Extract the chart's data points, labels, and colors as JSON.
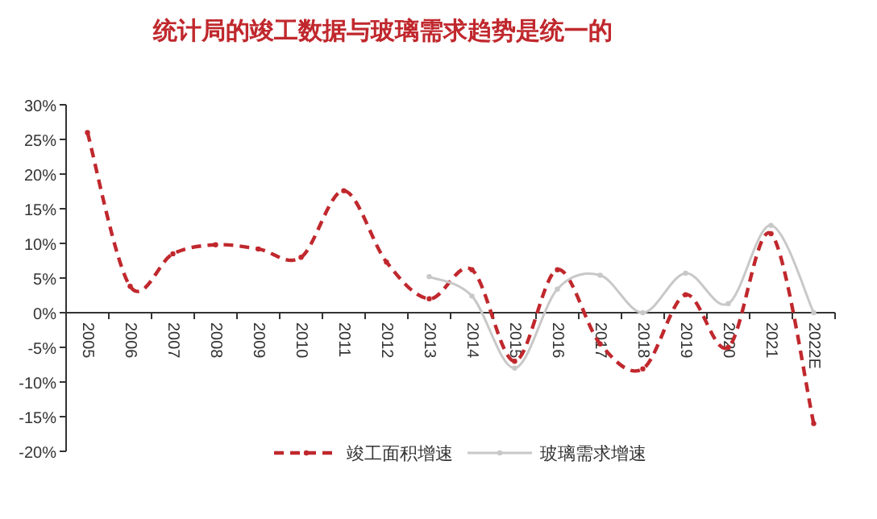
{
  "chart_data": {
    "type": "line",
    "title": "统计局的竣工数据与玻璃需求趋势是统一的",
    "categories": [
      "2005",
      "2006",
      "2007",
      "2008",
      "2009",
      "2010",
      "2011",
      "2012",
      "2013",
      "2014",
      "2015",
      "2016",
      "2017",
      "2018",
      "2019",
      "2020",
      "2021",
      "2022E"
    ],
    "series": [
      {
        "name": "竣工面积增速",
        "color": "#c0282d",
        "line_style": "dashed",
        "values": [
          26,
          3.8,
          8.5,
          9.8,
          9.2,
          8,
          17.6,
          7.3,
          2,
          6.2,
          -7,
          6.2,
          -4.5,
          -8.1,
          2.6,
          -5,
          11.4,
          -16
        ]
      },
      {
        "name": "玻璃需求增速",
        "color": "#c8c8c8",
        "line_style": "solid",
        "values": [
          null,
          null,
          null,
          null,
          null,
          null,
          null,
          null,
          5.2,
          2.4,
          -8,
          3.4,
          5.4,
          0,
          5.7,
          1.3,
          12.6,
          0
        ]
      }
    ],
    "ylim": [
      -20,
      30
    ],
    "yticks": [
      {
        "value": -20,
        "label": "-20%"
      },
      {
        "value": -15,
        "label": "-15%"
      },
      {
        "value": -10,
        "label": "-10%"
      },
      {
        "value": -5,
        "label": "-5%"
      },
      {
        "value": 0,
        "label": "0%"
      },
      {
        "value": 5,
        "label": "5%"
      },
      {
        "value": 10,
        "label": "10%"
      },
      {
        "value": 15,
        "label": "15%"
      },
      {
        "value": 20,
        "label": "20%"
      },
      {
        "value": 25,
        "label": "25%"
      },
      {
        "value": 30,
        "label": "30%"
      }
    ],
    "marker": "circle",
    "legend": "bottom",
    "grid": false
  }
}
